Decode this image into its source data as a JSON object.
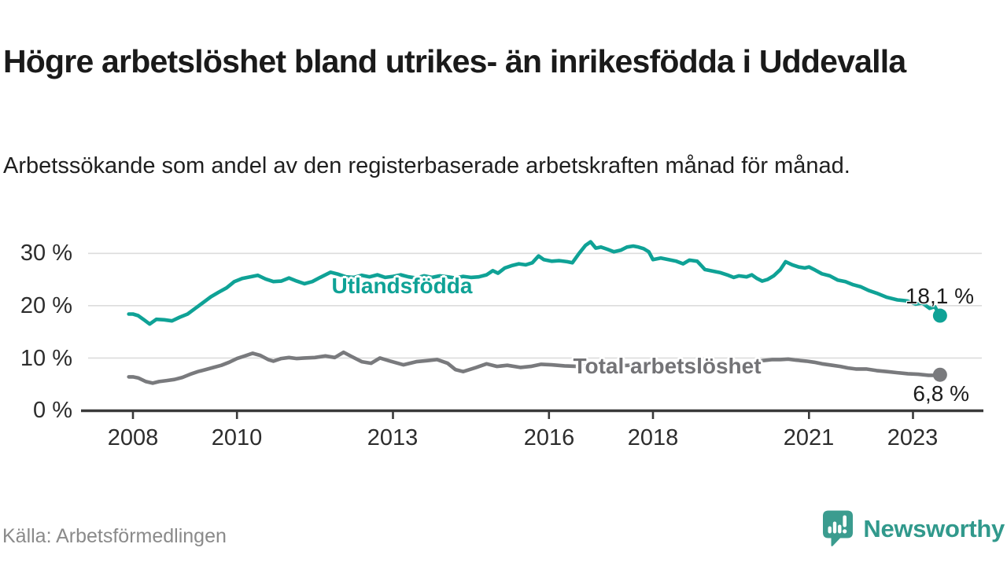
{
  "chart_data": {
    "type": "line",
    "title": "Högre arbetslöshet bland utrikes- än inrikesfödda i Uddevalla",
    "subtitle": "Arbetssökande som andel av den registerbaserade arbetskraften månad för månad.",
    "source": "Källa: Arbetsförmedlingen",
    "brand": "Newsworthy",
    "brand_color": "#31998c",
    "grid": "horizontal",
    "legend_position": "inline-labels",
    "xlim": [
      2007.9,
      2024.3
    ],
    "ylim": [
      0,
      33
    ],
    "ytick_values": [
      0,
      10,
      20,
      30
    ],
    "ytick_labels": [
      "0 %",
      "10 %",
      "20 %",
      "30 %"
    ],
    "xtick_values": [
      2008,
      2010,
      2013,
      2016,
      2018,
      2021,
      2023
    ],
    "xtick_labels": [
      "2008",
      "2010",
      "2013",
      "2016",
      "2018",
      "2021",
      "2023"
    ],
    "axis_color": "#3a3a3a",
    "grid_color": "#dcdcdc",
    "series": [
      {
        "name": "Utlandsfödda",
        "color": "#0fa296",
        "end_label": "18,1 %",
        "end_value": 18.1,
        "points": [
          [
            2007.92,
            18.4
          ],
          [
            2008.0,
            18.4
          ],
          [
            2008.1,
            18.1
          ],
          [
            2008.2,
            17.4
          ],
          [
            2008.32,
            16.5
          ],
          [
            2008.45,
            17.4
          ],
          [
            2008.6,
            17.3
          ],
          [
            2008.75,
            17.1
          ],
          [
            2008.9,
            17.8
          ],
          [
            2009.05,
            18.4
          ],
          [
            2009.2,
            19.5
          ],
          [
            2009.35,
            20.6
          ],
          [
            2009.5,
            21.7
          ],
          [
            2009.65,
            22.6
          ],
          [
            2009.8,
            23.4
          ],
          [
            2009.95,
            24.6
          ],
          [
            2010.1,
            25.2
          ],
          [
            2010.25,
            25.5
          ],
          [
            2010.4,
            25.8
          ],
          [
            2010.55,
            25.1
          ],
          [
            2010.7,
            24.6
          ],
          [
            2010.85,
            24.7
          ],
          [
            2011.0,
            25.3
          ],
          [
            2011.15,
            24.7
          ],
          [
            2011.3,
            24.2
          ],
          [
            2011.45,
            24.6
          ],
          [
            2011.6,
            25.4
          ],
          [
            2011.8,
            26.4
          ],
          [
            2011.95,
            26.0
          ],
          [
            2012.1,
            25.5
          ],
          [
            2012.25,
            25.4
          ],
          [
            2012.4,
            25.8
          ],
          [
            2012.55,
            25.5
          ],
          [
            2012.7,
            25.9
          ],
          [
            2012.85,
            25.4
          ],
          [
            2013.0,
            25.6
          ],
          [
            2013.15,
            25.9
          ],
          [
            2013.3,
            25.5
          ],
          [
            2013.45,
            25.3
          ],
          [
            2013.6,
            25.7
          ],
          [
            2013.75,
            25.4
          ],
          [
            2013.9,
            25.7
          ],
          [
            2014.05,
            25.5
          ],
          [
            2014.2,
            25.3
          ],
          [
            2014.35,
            25.6
          ],
          [
            2014.5,
            25.4
          ],
          [
            2014.65,
            25.5
          ],
          [
            2014.8,
            25.9
          ],
          [
            2014.92,
            26.7
          ],
          [
            2015.02,
            26.2
          ],
          [
            2015.15,
            27.2
          ],
          [
            2015.3,
            27.7
          ],
          [
            2015.42,
            28.0
          ],
          [
            2015.55,
            27.8
          ],
          [
            2015.68,
            28.2
          ],
          [
            2015.8,
            29.5
          ],
          [
            2015.9,
            28.8
          ],
          [
            2016.05,
            28.5
          ],
          [
            2016.2,
            28.6
          ],
          [
            2016.35,
            28.4
          ],
          [
            2016.45,
            28.2
          ],
          [
            2016.58,
            30.0
          ],
          [
            2016.7,
            31.5
          ],
          [
            2016.8,
            32.2
          ],
          [
            2016.9,
            31.0
          ],
          [
            2017.0,
            31.2
          ],
          [
            2017.12,
            30.8
          ],
          [
            2017.25,
            30.3
          ],
          [
            2017.38,
            30.6
          ],
          [
            2017.5,
            31.2
          ],
          [
            2017.62,
            31.4
          ],
          [
            2017.72,
            31.2
          ],
          [
            2017.82,
            30.9
          ],
          [
            2017.92,
            30.3
          ],
          [
            2018.0,
            28.8
          ],
          [
            2018.15,
            29.1
          ],
          [
            2018.3,
            28.8
          ],
          [
            2018.45,
            28.5
          ],
          [
            2018.58,
            28.0
          ],
          [
            2018.7,
            28.7
          ],
          [
            2018.85,
            28.5
          ],
          [
            2019.0,
            26.9
          ],
          [
            2019.15,
            26.6
          ],
          [
            2019.3,
            26.3
          ],
          [
            2019.45,
            25.8
          ],
          [
            2019.55,
            25.4
          ],
          [
            2019.65,
            25.7
          ],
          [
            2019.8,
            25.5
          ],
          [
            2019.9,
            25.9
          ],
          [
            2020.0,
            25.2
          ],
          [
            2020.1,
            24.7
          ],
          [
            2020.2,
            25.0
          ],
          [
            2020.32,
            25.7
          ],
          [
            2020.45,
            26.9
          ],
          [
            2020.55,
            28.4
          ],
          [
            2020.68,
            27.8
          ],
          [
            2020.8,
            27.4
          ],
          [
            2020.92,
            27.2
          ],
          [
            2021.0,
            27.4
          ],
          [
            2021.12,
            26.8
          ],
          [
            2021.25,
            26.1
          ],
          [
            2021.4,
            25.7
          ],
          [
            2021.55,
            24.9
          ],
          [
            2021.7,
            24.6
          ],
          [
            2021.85,
            24.0
          ],
          [
            2022.0,
            23.6
          ],
          [
            2022.15,
            22.9
          ],
          [
            2022.3,
            22.4
          ],
          [
            2022.5,
            21.6
          ],
          [
            2022.7,
            21.1
          ],
          [
            2022.9,
            20.9
          ],
          [
            2023.05,
            20.3
          ],
          [
            2023.18,
            20.5
          ],
          [
            2023.32,
            19.5
          ],
          [
            2023.42,
            19.8
          ],
          [
            2023.52,
            18.1
          ]
        ]
      },
      {
        "name": "Total arbetslöshet",
        "color": "#797a7d",
        "end_label": "6,8 %",
        "end_value": 6.8,
        "points": [
          [
            2007.92,
            6.4
          ],
          [
            2008.0,
            6.4
          ],
          [
            2008.1,
            6.2
          ],
          [
            2008.25,
            5.5
          ],
          [
            2008.38,
            5.2
          ],
          [
            2008.5,
            5.5
          ],
          [
            2008.65,
            5.7
          ],
          [
            2008.8,
            5.9
          ],
          [
            2008.95,
            6.3
          ],
          [
            2009.1,
            6.9
          ],
          [
            2009.25,
            7.4
          ],
          [
            2009.4,
            7.8
          ],
          [
            2009.55,
            8.2
          ],
          [
            2009.7,
            8.6
          ],
          [
            2009.85,
            9.2
          ],
          [
            2010.0,
            9.9
          ],
          [
            2010.15,
            10.4
          ],
          [
            2010.3,
            10.9
          ],
          [
            2010.45,
            10.5
          ],
          [
            2010.6,
            9.7
          ],
          [
            2010.7,
            9.4
          ],
          [
            2010.85,
            9.9
          ],
          [
            2011.0,
            10.1
          ],
          [
            2011.15,
            9.9
          ],
          [
            2011.3,
            10.0
          ],
          [
            2011.5,
            10.1
          ],
          [
            2011.7,
            10.4
          ],
          [
            2011.88,
            10.1
          ],
          [
            2012.05,
            11.1
          ],
          [
            2012.2,
            10.3
          ],
          [
            2012.4,
            9.3
          ],
          [
            2012.58,
            9.0
          ],
          [
            2012.75,
            10.0
          ],
          [
            2012.95,
            9.4
          ],
          [
            2013.2,
            8.7
          ],
          [
            2013.45,
            9.3
          ],
          [
            2013.65,
            9.5
          ],
          [
            2013.85,
            9.7
          ],
          [
            2014.05,
            9.0
          ],
          [
            2014.2,
            7.8
          ],
          [
            2014.35,
            7.4
          ],
          [
            2014.6,
            8.2
          ],
          [
            2014.8,
            8.9
          ],
          [
            2015.0,
            8.4
          ],
          [
            2015.2,
            8.6
          ],
          [
            2015.45,
            8.2
          ],
          [
            2015.65,
            8.4
          ],
          [
            2015.85,
            8.8
          ],
          [
            2016.05,
            8.7
          ],
          [
            2016.3,
            8.5
          ],
          [
            2016.55,
            8.4
          ],
          [
            2016.8,
            8.6
          ],
          [
            2017.05,
            8.7
          ],
          [
            2017.3,
            8.5
          ],
          [
            2017.55,
            8.6
          ],
          [
            2017.8,
            8.6
          ],
          [
            2018.05,
            8.7
          ],
          [
            2018.3,
            8.5
          ],
          [
            2018.55,
            8.6
          ],
          [
            2018.8,
            8.6
          ],
          [
            2019.05,
            8.7
          ],
          [
            2019.3,
            8.5
          ],
          [
            2019.55,
            8.6
          ],
          [
            2019.8,
            8.8
          ],
          [
            2019.95,
            9.1
          ],
          [
            2020.1,
            9.5
          ],
          [
            2020.3,
            9.7
          ],
          [
            2020.45,
            9.7
          ],
          [
            2020.6,
            9.8
          ],
          [
            2020.75,
            9.6
          ],
          [
            2020.95,
            9.4
          ],
          [
            2021.1,
            9.2
          ],
          [
            2021.25,
            8.9
          ],
          [
            2021.45,
            8.6
          ],
          [
            2021.6,
            8.4
          ],
          [
            2021.75,
            8.1
          ],
          [
            2021.9,
            7.9
          ],
          [
            2022.1,
            7.9
          ],
          [
            2022.3,
            7.6
          ],
          [
            2022.5,
            7.4
          ],
          [
            2022.7,
            7.2
          ],
          [
            2022.9,
            7.0
          ],
          [
            2023.1,
            6.9
          ],
          [
            2023.3,
            6.7
          ],
          [
            2023.42,
            6.7
          ],
          [
            2023.52,
            6.8
          ]
        ]
      }
    ]
  }
}
